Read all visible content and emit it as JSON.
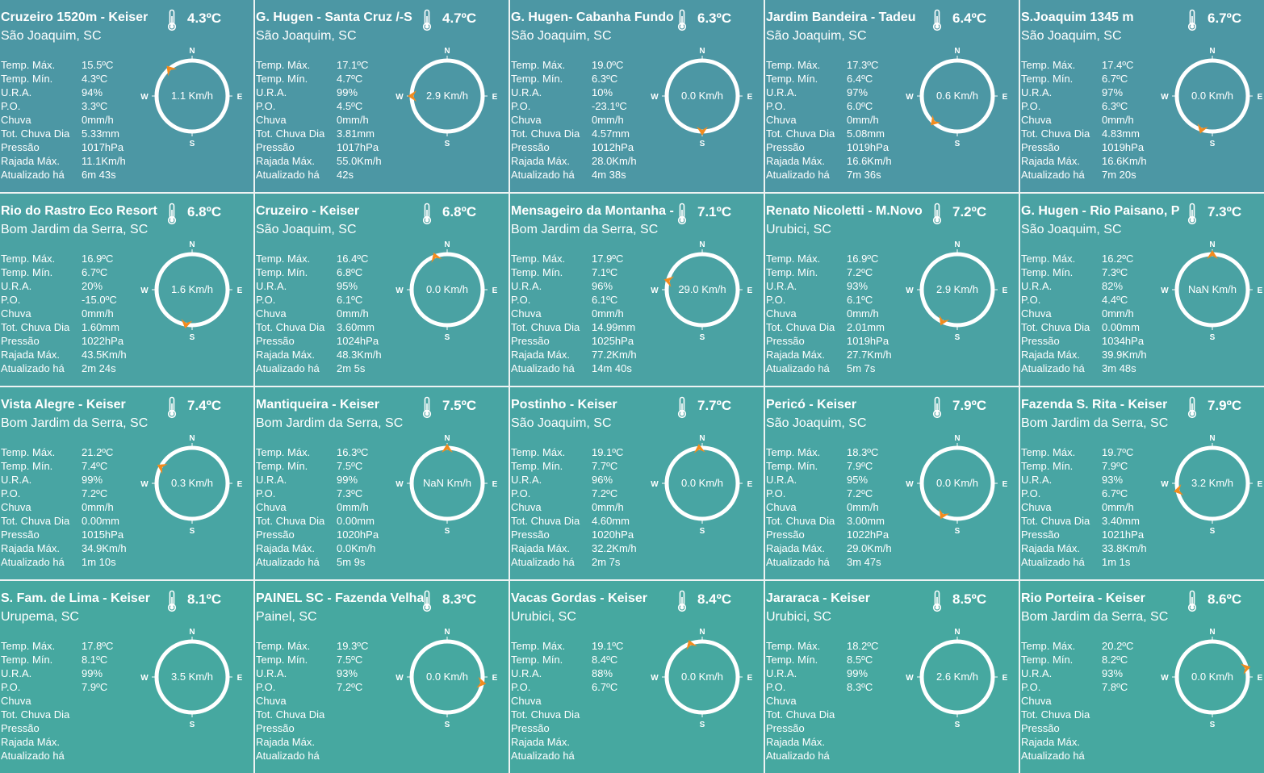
{
  "labels": {
    "tmax": "Temp. Máx.",
    "tmin": "Temp. Mín.",
    "ura": "U.R.A.",
    "po": "P.O.",
    "chuva": "Chuva",
    "tot": "Tot. Chuva Dia",
    "pressao": "Pressão",
    "rajada": "Rajada Máx.",
    "atual": "Atualizado há"
  },
  "compass": {
    "n": "N",
    "s": "S",
    "e": "E",
    "w": "W"
  },
  "icons": {
    "thermometer": "thermometer-icon",
    "wind_arrow": "wind-arrow-icon"
  },
  "colors": {
    "arrow": "#f28b1e",
    "ring": "#ffffff"
  },
  "stations": [
    {
      "name": "Cruzeiro 1520m - Keiser",
      "city": "São Joaquim, SC",
      "temp": "4.3ºC",
      "tmax": "15.5ºC",
      "tmin": "4.3ºC",
      "ura": "94%",
      "po": "3.3ºC",
      "chuva": "0mm/h",
      "tot": "5.33mm",
      "pressao": "1017hPa",
      "rajada": "11.1Km/h",
      "atual": "6m 43s",
      "wind": "1.1 Km/h",
      "dir": 320
    },
    {
      "name": "G. Hugen - Santa Cruz /-S",
      "city": "São Joaquim, SC",
      "temp": "4.7ºC",
      "tmax": "17.1ºC",
      "tmin": "4.7ºC",
      "ura": "99%",
      "po": "4.5ºC",
      "chuva": "0mm/h",
      "tot": "3.81mm",
      "pressao": "1017hPa",
      "rajada": "55.0Km/h",
      "atual": "42s",
      "wind": "2.9 Km/h",
      "dir": 270
    },
    {
      "name": "G. Hugen- Cabanha Fundo",
      "city": "São Joaquim, SC",
      "temp": "6.3ºC",
      "tmax": "19.0ºC",
      "tmin": "6.3ºC",
      "ura": "10%",
      "po": "-23.1ºC",
      "chuva": "0mm/h",
      "tot": "4.57mm",
      "pressao": "1012hPa",
      "rajada": "28.0Km/h",
      "atual": "4m 38s",
      "wind": "0.0 Km/h",
      "dir": 180
    },
    {
      "name": "Jardim Bandeira - Tadeu",
      "city": "São Joaquim, SC",
      "temp": "6.4ºC",
      "tmax": "17.3ºC",
      "tmin": "6.4ºC",
      "ura": "97%",
      "po": "6.0ºC",
      "chuva": "0mm/h",
      "tot": "5.08mm",
      "pressao": "1019hPa",
      "rajada": "16.6Km/h",
      "atual": "7m 36s",
      "wind": "0.6 Km/h",
      "dir": 222
    },
    {
      "name": "S.Joaquim 1345 m",
      "city": "São Joaquim, SC",
      "temp": "6.7ºC",
      "tmax": "17.4ºC",
      "tmin": "6.7ºC",
      "ura": "97%",
      "po": "6.3ºC",
      "chuva": "0mm/h",
      "tot": "4.83mm",
      "pressao": "1019hPa",
      "rajada": "16.6Km/h",
      "atual": "7m 20s",
      "wind": "0.0 Km/h",
      "dir": 198
    },
    {
      "name": "Rio do Rastro Eco Resort",
      "city": "Bom Jardim da Serra, SC",
      "temp": "6.8ºC",
      "tmax": "16.9ºC",
      "tmin": "6.7ºC",
      "ura": "20%",
      "po": "-15.0ºC",
      "chuva": "0mm/h",
      "tot": "1.60mm",
      "pressao": "1022hPa",
      "rajada": "43.5Km/h",
      "atual": "2m 24s",
      "wind": "1.6 Km/h",
      "dir": 190
    },
    {
      "name": "Cruzeiro - Keiser",
      "city": "São Joaquim, SC",
      "temp": "6.8ºC",
      "tmax": "16.4ºC",
      "tmin": "6.8ºC",
      "ura": "95%",
      "po": "6.1ºC",
      "chuva": "0mm/h",
      "tot": "3.60mm",
      "pressao": "1024hPa",
      "rajada": "48.3Km/h",
      "atual": "2m 5s",
      "wind": "0.0 Km/h",
      "dir": 340
    },
    {
      "name": "Mensageiro da Montanha -",
      "city": "Bom Jardim da Serra, SC",
      "temp": "7.1ºC",
      "tmax": "17.9ºC",
      "tmin": "7.1ºC",
      "ura": "96%",
      "po": "6.1ºC",
      "chuva": "0mm/h",
      "tot": "14.99mm",
      "pressao": "1025hPa",
      "rajada": "77.2Km/h",
      "atual": "14m 40s",
      "wind": "29.0 Km/h",
      "dir": 285
    },
    {
      "name": "Renato Nicoletti - M.Novo",
      "city": "Urubici, SC",
      "temp": "7.2ºC",
      "tmax": "16.9ºC",
      "tmin": "7.2ºC",
      "ura": "93%",
      "po": "6.1ºC",
      "chuva": "0mm/h",
      "tot": "2.01mm",
      "pressao": "1019hPa",
      "rajada": "27.7Km/h",
      "atual": "5m 7s",
      "wind": "2.9 Km/h",
      "dir": 205
    },
    {
      "name": "G. Hugen - Rio Paisano, P",
      "city": "São Joaquim, SC",
      "temp": "7.3ºC",
      "tmax": "16.2ºC",
      "tmin": "7.3ºC",
      "ura": "82%",
      "po": "4.4ºC",
      "chuva": "0mm/h",
      "tot": "0.00mm",
      "pressao": "1034hPa",
      "rajada": "39.9Km/h",
      "atual": "3m 48s",
      "wind": "NaN Km/h",
      "dir": 0
    },
    {
      "name": "Vista Alegre - Keiser",
      "city": "Bom Jardim da Serra, SC",
      "temp": "7.4ºC",
      "tmax": "21.2ºC",
      "tmin": "7.4ºC",
      "ura": "99%",
      "po": "7.2ºC",
      "chuva": "0mm/h",
      "tot": "0.00mm",
      "pressao": "1015hPa",
      "rajada": "34.9Km/h",
      "atual": "1m 10s",
      "wind": "0.3 Km/h",
      "dir": 298
    },
    {
      "name": "Mantiqueira - Keiser",
      "city": "Bom Jardim da Serra, SC",
      "temp": "7.5ºC",
      "tmax": "16.3ºC",
      "tmin": "7.5ºC",
      "ura": "99%",
      "po": "7.3ºC",
      "chuva": "0mm/h",
      "tot": "0.00mm",
      "pressao": "1020hPa",
      "rajada": "0.0Km/h",
      "atual": "5m 9s",
      "wind": "NaN Km/h",
      "dir": 0
    },
    {
      "name": "Postinho - Keiser",
      "city": "São Joaquim, SC",
      "temp": "7.7ºC",
      "tmax": "19.1ºC",
      "tmin": "7.7ºC",
      "ura": "96%",
      "po": "7.2ºC",
      "chuva": "0mm/h",
      "tot": "4.60mm",
      "pressao": "1020hPa",
      "rajada": "32.2Km/h",
      "atual": "2m 7s",
      "wind": "0.0 Km/h",
      "dir": 355
    },
    {
      "name": "Pericó - Keiser",
      "city": "São Joaquim, SC",
      "temp": "7.9ºC",
      "tmax": "18.3ºC",
      "tmin": "7.9ºC",
      "ura": "95%",
      "po": "7.2ºC",
      "chuva": "0mm/h",
      "tot": "3.00mm",
      "pressao": "1022hPa",
      "rajada": "29.0Km/h",
      "atual": "3m 47s",
      "wind": "0.0 Km/h",
      "dir": 205
    },
    {
      "name": "Fazenda S. Rita - Keiser",
      "city": "Bom Jardim da Serra, SC",
      "temp": "7.9ºC",
      "tmax": "19.7ºC",
      "tmin": "7.9ºC",
      "ura": "93%",
      "po": "6.7ºC",
      "chuva": "0mm/h",
      "tot": "3.40mm",
      "pressao": "1021hPa",
      "rajada": "33.8Km/h",
      "atual": "1m 1s",
      "wind": "3.2 Km/h",
      "dir": 258
    },
    {
      "name": "S. Fam. de Lima - Keiser",
      "city": "Urupema, SC",
      "temp": "8.1ºC",
      "tmax": "17.8ºC",
      "tmin": "8.1ºC",
      "ura": "99%",
      "po": "7.9ºC",
      "chuva": "",
      "tot": "",
      "pressao": "",
      "rajada": "",
      "atual": "",
      "wind": "3.5 Km/h",
      "dir": null
    },
    {
      "name": "PAINEL SC - Fazenda Velha",
      "city": "Painel, SC",
      "temp": "8.3ºC",
      "tmax": "19.3ºC",
      "tmin": "7.5ºC",
      "ura": "93%",
      "po": "7.2ºC",
      "chuva": "",
      "tot": "",
      "pressao": "",
      "rajada": "",
      "atual": "",
      "wind": "0.0 Km/h",
      "dir": 100
    },
    {
      "name": "Vacas Gordas - Keiser",
      "city": "Urubici, SC",
      "temp": "8.4ºC",
      "tmax": "19.1ºC",
      "tmin": "8.4ºC",
      "ura": "88%",
      "po": "6.7ºC",
      "chuva": "",
      "tot": "",
      "pressao": "",
      "rajada": "",
      "atual": "",
      "wind": "0.0 Km/h",
      "dir": 340
    },
    {
      "name": "Jararaca - Keiser",
      "city": "Urubici, SC",
      "temp": "8.5ºC",
      "tmax": "18.2ºC",
      "tmin": "8.5ºC",
      "ura": "99%",
      "po": "8.3ºC",
      "chuva": "",
      "tot": "",
      "pressao": "",
      "rajada": "",
      "atual": "",
      "wind": "2.6 Km/h",
      "dir": null
    },
    {
      "name": "Rio Porteira - Keiser",
      "city": "Bom Jardim da Serra, SC",
      "temp": "8.6ºC",
      "tmax": "20.2ºC",
      "tmin": "8.2ºC",
      "ura": "93%",
      "po": "7.8ºC",
      "chuva": "",
      "tot": "",
      "pressao": "",
      "rajada": "",
      "atual": "",
      "wind": "0.0 Km/h",
      "dir": 75
    }
  ]
}
